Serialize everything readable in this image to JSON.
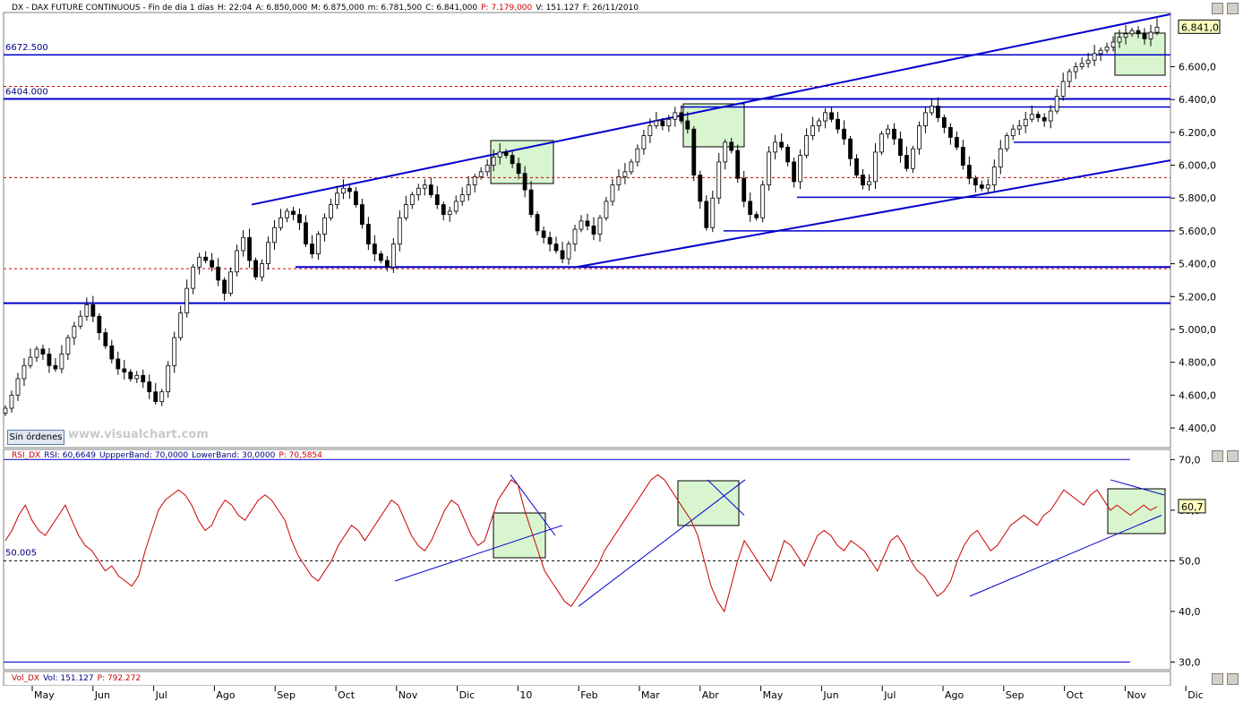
{
  "window": {
    "price_header": [
      "DX - DAX FUTURE CONTINUOUS - Fin de día 1 días",
      "H: 22:04",
      "A: 6.850,000",
      "M: 6.875,000",
      "m: 6.781,500",
      "C: 6.841,000",
      "P: 7.179,000",
      "V: 151.127",
      "F: 26/11/2010"
    ],
    "rsi_header": [
      "RSI_DX",
      "RSI: 60,6649",
      "UppperBand: 70,0000",
      "LowerBand: 30,0000",
      "P: 70,5854"
    ],
    "vol_header": [
      "Vol_DX",
      "Vol: 151.127",
      "P: 792.272"
    ],
    "order_button": "Sin órdenes",
    "watermark": "www.visualchart.com"
  },
  "colors": {
    "candle": "#000000",
    "trendline": "#0000cc",
    "rsi": "#cc0000",
    "box": "#d8f5d0",
    "dashed": "#cc0000",
    "header_red": "#cc0000",
    "header_blue": "#000080"
  },
  "chart_data": [
    {
      "type": "candlestick",
      "title": "DX - DAX FUTURE CONTINUOUS",
      "x_ticks": [
        "May",
        "Jun",
        "Jul",
        "Ago",
        "Sep",
        "Oct",
        "Nov",
        "Dic",
        "10",
        "Feb",
        "Mar",
        "Abr",
        "May",
        "Jun",
        "Jul",
        "Ago",
        "Sep",
        "Oct",
        "Nov",
        "Dic"
      ],
      "y_ticks": [
        "4.400,0",
        "4.600,0",
        "4.800,0",
        "5.000,0",
        "5.200,0",
        "5.400,0",
        "5.600,0",
        "5.800,0",
        "6.000,0",
        "6.200,0",
        "6.400,0",
        "6.600,0"
      ],
      "ylim": [
        4280,
        6930
      ],
      "last_price_label": "6.841,0",
      "level_labels": [
        "6672.500",
        "6404.000"
      ],
      "horizontal_levels": [
        6672.5,
        6404,
        6355,
        6140,
        5805,
        5600,
        5380,
        5160
      ],
      "dashed_levels": [
        6480,
        5925,
        5370
      ],
      "trend_lines": [
        {
          "from": [
            "Sep",
            5760
          ],
          "to": [
            "Dic",
            6920
          ]
        },
        {
          "from": [
            "Feb",
            5380
          ],
          "to": [
            "Dic",
            6030
          ]
        }
      ],
      "series": [
        {
          "name": "close",
          "values": [
            4520,
            4600,
            4700,
            4780,
            4830,
            4880,
            4850,
            4780,
            4760,
            4850,
            4950,
            5020,
            5080,
            5150,
            5080,
            4980,
            4900,
            4820,
            4760,
            4740,
            4700,
            4720,
            4680,
            4620,
            4560,
            4620,
            4780,
            4950,
            5100,
            5250,
            5380,
            5440,
            5420,
            5380,
            5300,
            5220,
            5350,
            5480,
            5560,
            5420,
            5320,
            5400,
            5530,
            5620,
            5680,
            5720,
            5700,
            5650,
            5520,
            5460,
            5580,
            5680,
            5760,
            5830,
            5860,
            5840,
            5760,
            5640,
            5520,
            5460,
            5420,
            5380,
            5520,
            5680,
            5760,
            5820,
            5860,
            5880,
            5820,
            5760,
            5700,
            5720,
            5780,
            5820,
            5880,
            5930,
            5960,
            6000,
            6050,
            6080,
            6060,
            6010,
            5950,
            5850,
            5700,
            5600,
            5560,
            5520,
            5480,
            5430,
            5520,
            5610,
            5660,
            5630,
            5580,
            5680,
            5780,
            5880,
            5930,
            5960,
            6020,
            6100,
            6180,
            6240,
            6270,
            6240,
            6280,
            6320,
            6270,
            6220,
            5940,
            5780,
            5620,
            5800,
            6020,
            6140,
            6090,
            5920,
            5780,
            5700,
            5680,
            5880,
            6080,
            6140,
            6110,
            6020,
            5900,
            6060,
            6180,
            6240,
            6270,
            6320,
            6280,
            6220,
            6160,
            6040,
            5940,
            5880,
            5900,
            6080,
            6190,
            6220,
            6160,
            6060,
            5980,
            6100,
            6240,
            6320,
            6360,
            6290,
            6230,
            6170,
            6110,
            6000,
            5920,
            5880,
            5860,
            5880,
            5990,
            6100,
            6180,
            6220,
            6240,
            6280,
            6310,
            6290,
            6270,
            6330,
            6420,
            6510,
            6570,
            6600,
            6620,
            6640,
            6680,
            6700,
            6720,
            6750,
            6780,
            6800,
            6820,
            6800,
            6770,
            6810,
            6841
          ]
        }
      ]
    },
    {
      "type": "line",
      "title": "RSI_DX",
      "y_ticks": [
        "30,0",
        "40,0",
        "50,0",
        "60,0",
        "70,0"
      ],
      "ylim": [
        28.5,
        72
      ],
      "bands": [
        70,
        30
      ],
      "mid_label": "50.005",
      "last_value_label": "60,7",
      "series": [
        {
          "name": "RSI",
          "values": [
            54,
            56,
            59,
            61,
            58,
            56,
            55,
            57,
            59,
            61,
            58,
            55,
            53,
            52,
            50,
            48,
            49,
            47,
            46,
            45,
            47,
            52,
            56,
            60,
            62,
            63,
            64,
            63,
            61,
            58,
            56,
            57,
            60,
            62,
            61,
            59,
            58,
            60,
            62,
            63,
            62,
            60,
            58,
            54,
            51,
            49,
            47,
            46,
            48,
            50,
            53,
            55,
            57,
            56,
            54,
            56,
            58,
            60,
            62,
            61,
            58,
            55,
            53,
            52,
            54,
            57,
            60,
            62,
            61,
            58,
            55,
            53,
            54,
            58,
            62,
            64,
            66,
            65,
            60,
            56,
            52,
            48,
            46,
            44,
            42,
            41,
            43,
            45,
            47,
            49,
            52,
            54,
            56,
            58,
            60,
            62,
            64,
            66,
            67,
            66,
            64,
            62,
            60,
            58,
            55,
            50,
            45,
            42,
            40,
            45,
            50,
            54,
            52,
            50,
            48,
            46,
            50,
            54,
            53,
            51,
            49,
            52,
            55,
            56,
            55,
            53,
            52,
            54,
            53,
            52,
            50,
            48,
            51,
            54,
            55,
            53,
            50,
            48,
            47,
            45,
            43,
            44,
            46,
            50,
            53,
            55,
            56,
            54,
            52,
            53,
            55,
            57,
            58,
            59,
            58,
            57,
            59,
            60,
            62,
            64,
            63,
            62,
            61,
            63,
            64,
            62,
            60,
            61,
            60,
            59,
            60,
            61,
            60,
            60.7
          ]
        }
      ]
    },
    {
      "type": "bar",
      "title": "Vol_DX"
    }
  ]
}
